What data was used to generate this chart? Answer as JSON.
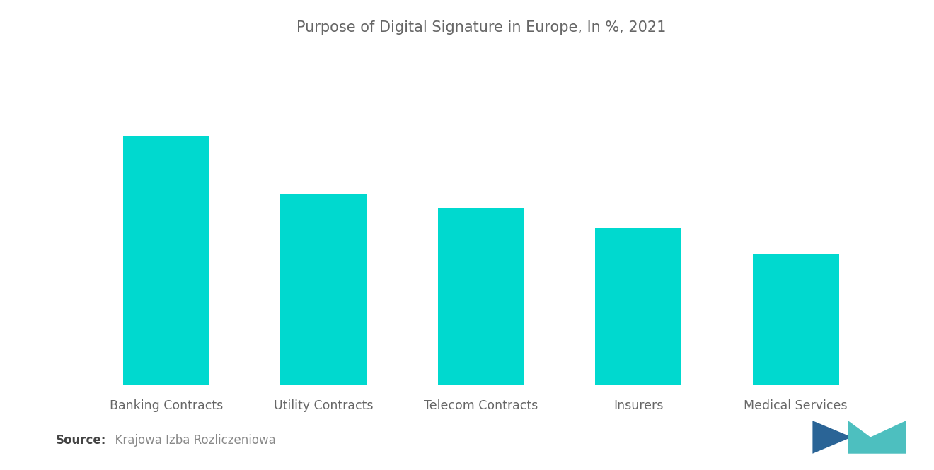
{
  "title": "Purpose of Digital Signature in Europe, In %, 2021",
  "categories": [
    "Banking Contracts",
    "Utility Contracts",
    "Telecom Contracts",
    "Insurers",
    "Medical Services"
  ],
  "values": [
    38,
    29,
    27,
    24,
    20
  ],
  "bar_color": "#00D9CF",
  "background_color": "#ffffff",
  "title_color": "#666666",
  "label_color": "#666666",
  "source_bold": "Source:",
  "source_text": "  Krajowa Izba Rozliczeniowa",
  "title_fontsize": 15,
  "label_fontsize": 12.5,
  "source_fontsize": 12,
  "ylim": [
    0,
    50
  ],
  "bar_width": 0.55,
  "logo_left_color": "#2A6496",
  "logo_right_color": "#4DBFBF"
}
